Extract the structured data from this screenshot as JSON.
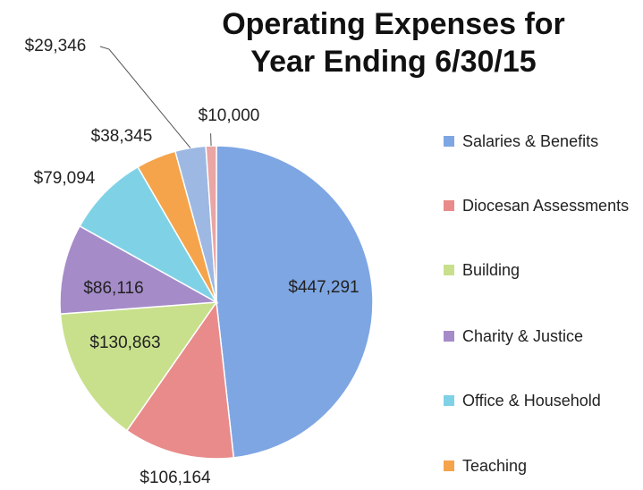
{
  "chart_data": {
    "type": "pie",
    "title": [
      "Operating Expenses for",
      "Year Ending 6/30/15"
    ],
    "categories": [
      "Salaries & Benefits",
      "Diocesan Assessments",
      "Building",
      "Charity & Justice",
      "Office & Household",
      "Teaching",
      null,
      null
    ],
    "values": [
      447291,
      106164,
      130863,
      86116,
      79094,
      38345,
      29346,
      10000
    ],
    "value_labels": [
      "$447,291",
      "$106,164",
      "$130,863",
      "$86,116",
      "$79,094",
      "$38,345",
      "$29,346",
      "$10,000"
    ],
    "colors": [
      "#7ea6e3",
      "#e98b8b",
      "#c8e08c",
      "#a58cc9",
      "#7fd2e6",
      "#f5a44c",
      "#9db8e2",
      "#eaa5a5"
    ],
    "legend": "right"
  }
}
